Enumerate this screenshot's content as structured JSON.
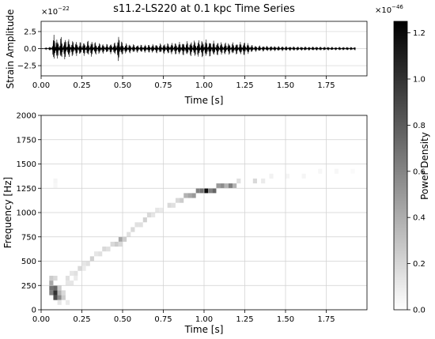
{
  "chart_data": [
    {
      "type": "line",
      "title": "s11.2-LS220 at 0.1 kpc Time Series",
      "xlabel": "Time [s]",
      "ylabel": "Strain Amplitude",
      "scale_label": "×10",
      "scale_exponent": "−22",
      "xlim": [
        0,
        2.0
      ],
      "ylim": [
        -4.0,
        4.0
      ],
      "xticks": [
        0,
        0.25,
        0.5,
        0.75,
        1.0,
        1.25,
        1.5,
        1.75
      ],
      "xticklabels": [
        "0.00",
        "0.25",
        "0.50",
        "0.75",
        "1.00",
        "1.25",
        "1.50",
        "1.75"
      ],
      "yticks": [
        -2.5,
        0,
        2.5
      ],
      "yticklabels": [
        "−2.5",
        "0.0",
        "2.5"
      ],
      "grid": true,
      "envelope": [
        [
          0.0,
          0.0
        ],
        [
          0.06,
          0.3
        ],
        [
          0.075,
          1.5
        ],
        [
          0.085,
          3.6
        ],
        [
          0.09,
          2.4
        ],
        [
          0.1,
          1.4
        ],
        [
          0.12,
          1.8
        ],
        [
          0.15,
          1.6
        ],
        [
          0.2,
          1.2
        ],
        [
          0.25,
          1.0
        ],
        [
          0.3,
          1.3
        ],
        [
          0.35,
          0.9
        ],
        [
          0.4,
          0.7
        ],
        [
          0.45,
          0.9
        ],
        [
          0.48,
          2.2
        ],
        [
          0.5,
          0.9
        ],
        [
          0.55,
          0.7
        ],
        [
          0.6,
          0.6
        ],
        [
          0.7,
          0.7
        ],
        [
          0.8,
          0.9
        ],
        [
          0.9,
          1.1
        ],
        [
          0.95,
          1.3
        ],
        [
          1.0,
          1.4
        ],
        [
          1.05,
          1.2
        ],
        [
          1.1,
          1.0
        ],
        [
          1.2,
          0.9
        ],
        [
          1.25,
          1.1
        ],
        [
          1.3,
          0.5
        ],
        [
          1.4,
          0.4
        ],
        [
          1.5,
          0.35
        ],
        [
          1.6,
          0.3
        ],
        [
          1.7,
          0.3
        ],
        [
          1.8,
          0.25
        ],
        [
          1.9,
          0.25
        ],
        [
          1.93,
          0.25
        ]
      ]
    },
    {
      "type": "heatmap",
      "xlabel": "Time [s]",
      "ylabel": "Frequency [Hz]",
      "xlim": [
        0,
        2.0
      ],
      "ylim": [
        0,
        2000
      ],
      "xticks": [
        0,
        0.25,
        0.5,
        0.75,
        1.0,
        1.25,
        1.5,
        1.75
      ],
      "xticklabels": [
        "0.00",
        "0.25",
        "0.50",
        "0.75",
        "1.00",
        "1.25",
        "1.50",
        "1.75"
      ],
      "yticks": [
        0,
        250,
        500,
        750,
        1000,
        1250,
        1500,
        1750,
        2000
      ],
      "yticklabels": [
        "0",
        "250",
        "500",
        "750",
        "1000",
        "1250",
        "1500",
        "1750",
        "2000"
      ],
      "grid": true,
      "colormap": "gray_r",
      "bin_width_s": 0.025,
      "bin_height_hz": 50,
      "cells": [
        [
          0.05,
          150,
          0.5
        ],
        [
          0.05,
          200,
          0.55
        ],
        [
          0.05,
          250,
          0.35
        ],
        [
          0.075,
          100,
          0.7
        ],
        [
          0.075,
          150,
          0.8
        ],
        [
          0.075,
          200,
          0.6
        ],
        [
          0.1,
          100,
          0.45
        ],
        [
          0.1,
          150,
          0.3
        ],
        [
          0.05,
          300,
          0.2
        ],
        [
          0.075,
          300,
          0.15
        ],
        [
          0.1,
          200,
          0.2
        ],
        [
          0.125,
          150,
          0.15
        ],
        [
          0.125,
          100,
          0.2
        ],
        [
          0.15,
          50,
          0.08
        ],
        [
          0.15,
          250,
          0.1
        ],
        [
          0.15,
          300,
          0.12
        ],
        [
          0.175,
          250,
          0.1
        ],
        [
          0.175,
          350,
          0.1
        ],
        [
          0.2,
          350,
          0.12
        ],
        [
          0.2,
          300,
          0.08
        ],
        [
          0.225,
          400,
          0.15
        ],
        [
          0.25,
          450,
          0.1
        ],
        [
          0.25,
          400,
          0.08
        ],
        [
          0.275,
          450,
          0.12
        ],
        [
          0.3,
          500,
          0.18
        ],
        [
          0.325,
          550,
          0.1
        ],
        [
          0.35,
          550,
          0.12
        ],
        [
          0.375,
          600,
          0.15
        ],
        [
          0.4,
          600,
          0.12
        ],
        [
          0.425,
          650,
          0.15
        ],
        [
          0.45,
          650,
          0.2
        ],
        [
          0.475,
          700,
          0.35
        ],
        [
          0.475,
          650,
          0.15
        ],
        [
          0.5,
          700,
          0.2
        ],
        [
          0.525,
          750,
          0.12
        ],
        [
          0.55,
          800,
          0.15
        ],
        [
          0.575,
          850,
          0.12
        ],
        [
          0.6,
          850,
          0.12
        ],
        [
          0.625,
          900,
          0.18
        ],
        [
          0.65,
          950,
          0.15
        ],
        [
          0.675,
          950,
          0.1
        ],
        [
          0.7,
          1000,
          0.1
        ],
        [
          0.725,
          1000,
          0.08
        ],
        [
          0.775,
          1050,
          0.15
        ],
        [
          0.8,
          1050,
          0.12
        ],
        [
          0.825,
          1100,
          0.15
        ],
        [
          0.85,
          1100,
          0.2
        ],
        [
          0.875,
          1150,
          0.3
        ],
        [
          0.9,
          1150,
          0.35
        ],
        [
          0.925,
          1150,
          0.4
        ],
        [
          0.95,
          1200,
          0.5
        ],
        [
          0.975,
          1200,
          0.55
        ],
        [
          1.0,
          1200,
          0.95
        ],
        [
          1.025,
          1200,
          0.5
        ],
        [
          1.05,
          1200,
          0.6
        ],
        [
          1.075,
          1250,
          0.4
        ],
        [
          1.1,
          1250,
          0.45
        ],
        [
          1.125,
          1250,
          0.3
        ],
        [
          1.15,
          1250,
          0.5
        ],
        [
          1.175,
          1250,
          0.3
        ],
        [
          1.2,
          1300,
          0.12
        ],
        [
          1.3,
          1300,
          0.15
        ],
        [
          1.35,
          1300,
          0.08
        ],
        [
          1.4,
          1350,
          0.05
        ],
        [
          1.5,
          1350,
          0.04
        ],
        [
          1.6,
          1350,
          0.04
        ],
        [
          1.7,
          1400,
          0.03
        ],
        [
          1.8,
          1400,
          0.03
        ],
        [
          1.9,
          1400,
          0.02
        ],
        [
          0.075,
          1300,
          0.04
        ],
        [
          0.075,
          1250,
          0.03
        ],
        [
          0.1,
          50,
          0.1
        ]
      ]
    }
  ],
  "colorbar": {
    "label": "Power Density",
    "scale_label": "×10",
    "scale_exponent": "−46",
    "range": [
      0,
      1.25
    ],
    "ticks": [
      0.0,
      0.2,
      0.4,
      0.6,
      0.8,
      1.0,
      1.2
    ],
    "ticklabels": [
      "0.0",
      "0.2",
      "0.4",
      "0.6",
      "0.8",
      "1.0",
      "1.2"
    ]
  }
}
